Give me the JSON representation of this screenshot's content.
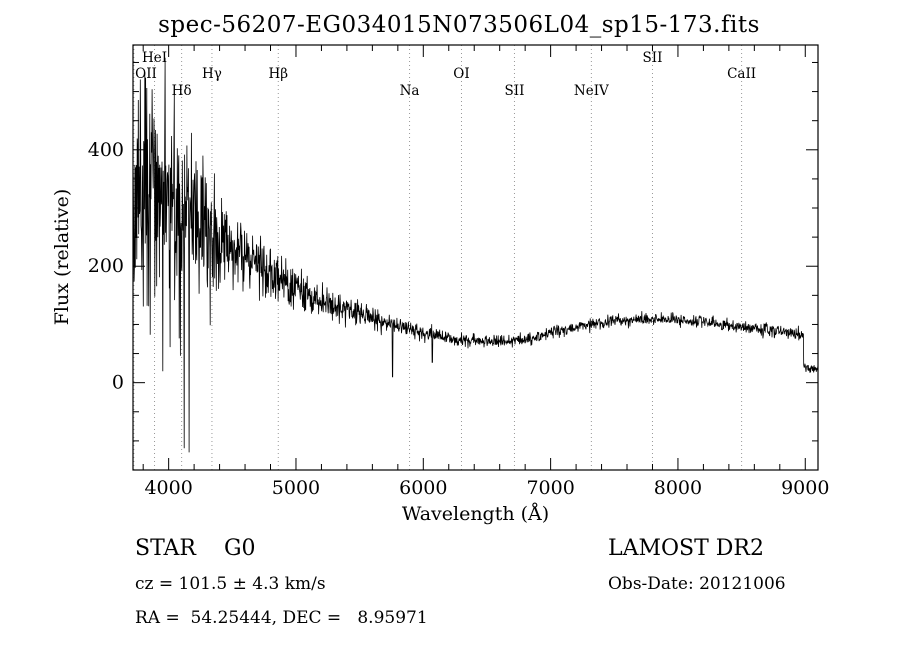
{
  "chart_data": {
    "type": "line",
    "title": "spec-56207-EG034015N073506L04_sp15-173.fits",
    "xlabel": "Wavelength (Å)",
    "ylabel": "Flux (relative)",
    "xlim": [
      3720,
      9100
    ],
    "ylim": [
      -150,
      580
    ],
    "x_major_ticks": [
      4000,
      5000,
      6000,
      7000,
      8000,
      9000
    ],
    "x_minor_step": 200,
    "y_major_ticks": [
      0,
      200,
      400
    ],
    "y_minor_step": 50,
    "line_color": "#000000",
    "grid_line_color": "#999999",
    "legend": "none",
    "spectral_lines": [
      {
        "label": "OII",
        "wavelength": 3727,
        "row": 1
      },
      {
        "label": "HeI",
        "wavelength": 3889,
        "row": 0
      },
      {
        "label": "Hδ",
        "wavelength": 4102,
        "row": 2
      },
      {
        "label": "Hγ",
        "wavelength": 4340,
        "row": 1
      },
      {
        "label": "Hβ",
        "wavelength": 4861,
        "row": 1
      },
      {
        "label": "Na",
        "wavelength": 5892,
        "row": 2
      },
      {
        "label": "OI",
        "wavelength": 6300,
        "row": 1
      },
      {
        "label": "SII",
        "wavelength": 6716,
        "row": 2
      },
      {
        "label": "NeIV",
        "wavelength": 7320,
        "row": 2
      },
      {
        "label": "SII",
        "wavelength": 7800,
        "row": 0
      },
      {
        "label": "CaII",
        "wavelength": 8500,
        "row": 1
      }
    ],
    "continuum": [
      [
        3720,
        280
      ],
      [
        3780,
        330
      ],
      [
        3850,
        340
      ],
      [
        3950,
        320
      ],
      [
        4050,
        300
      ],
      [
        4150,
        285
      ],
      [
        4250,
        265
      ],
      [
        4400,
        245
      ],
      [
        4600,
        220
      ],
      [
        4800,
        190
      ],
      [
        5000,
        160
      ],
      [
        5200,
        140
      ],
      [
        5400,
        125
      ],
      [
        5600,
        110
      ],
      [
        5800,
        98
      ],
      [
        6000,
        85
      ],
      [
        6200,
        76
      ],
      [
        6400,
        72
      ],
      [
        6600,
        70
      ],
      [
        6800,
        74
      ],
      [
        7000,
        85
      ],
      [
        7200,
        95
      ],
      [
        7400,
        103
      ],
      [
        7600,
        108
      ],
      [
        7800,
        110
      ],
      [
        8000,
        108
      ],
      [
        8200,
        104
      ],
      [
        8400,
        99
      ],
      [
        8600,
        94
      ],
      [
        8800,
        88
      ],
      [
        9000,
        82
      ]
    ],
    "noise_envelope": [
      [
        3720,
        150
      ],
      [
        3800,
        140
      ],
      [
        3900,
        130
      ],
      [
        4000,
        120
      ],
      [
        4100,
        110
      ],
      [
        4200,
        90
      ],
      [
        4350,
        70
      ],
      [
        4500,
        50
      ],
      [
        4700,
        38
      ],
      [
        4900,
        28
      ],
      [
        5100,
        22
      ],
      [
        5300,
        18
      ],
      [
        5500,
        15
      ],
      [
        5700,
        12
      ],
      [
        5900,
        10
      ],
      [
        6100,
        9
      ],
      [
        6400,
        8
      ],
      [
        7000,
        7
      ],
      [
        7600,
        8
      ],
      [
        8200,
        7
      ],
      [
        9000,
        8
      ]
    ],
    "down_spikes": [
      {
        "wavelength": 5758,
        "flux": 10
      },
      {
        "wavelength": 6070,
        "flux": 35
      }
    ],
    "edge_drop": {
      "wavelength": 8985,
      "flux": 25
    },
    "sample_step": 3,
    "seed": 42
  },
  "annotations": {
    "class_label": "STAR    G0",
    "survey": "LAMOST DR2",
    "cz": "cz = 101.5 ± 4.3 km/s",
    "obs_date": "Obs-Date: 20121006",
    "ra_dec": "RA =  54.25444, DEC =   8.95971"
  }
}
